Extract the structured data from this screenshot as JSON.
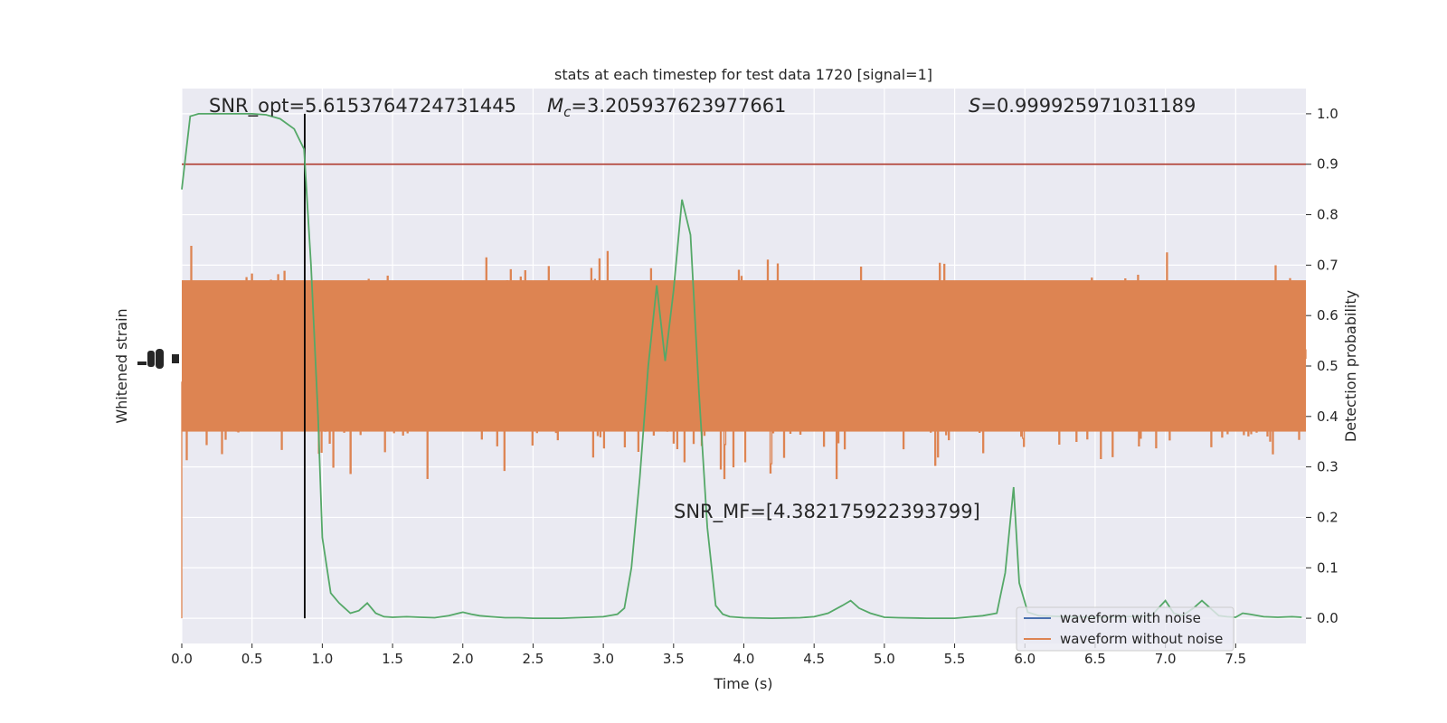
{
  "chart_data": {
    "type": "line",
    "title": "stats at each timestep for test data 1720 [signal=1]",
    "xlabel": "Time (s)",
    "ylabel_left": "Whitened strain",
    "ylabel_right": "Detection probability",
    "xlim": [
      0,
      8
    ],
    "ylim_right": [
      -0.05,
      1.05
    ],
    "x_ticks": [
      0.0,
      0.5,
      1.0,
      1.5,
      2.0,
      2.5,
      3.0,
      3.5,
      4.0,
      4.5,
      5.0,
      5.5,
      6.0,
      6.5,
      7.0,
      7.5
    ],
    "x_tick_labels": [
      "0.0",
      "0.5",
      "1.0",
      "1.5",
      "2.0",
      "2.5",
      "3.0",
      "3.5",
      "4.0",
      "4.5",
      "5.0",
      "5.5",
      "6.0",
      "6.5",
      "7.0",
      "7.5"
    ],
    "y_right_ticks": [
      0.0,
      0.1,
      0.2,
      0.3,
      0.4,
      0.5,
      0.6,
      0.7,
      0.8,
      0.9,
      1.0
    ],
    "y_right_tick_labels": [
      "0.0",
      "0.1",
      "0.2",
      "0.3",
      "0.4",
      "0.5",
      "0.6",
      "0.7",
      "0.8",
      "0.9",
      "1.0"
    ],
    "grid": true,
    "legend_position": "lower-right",
    "annotations": {
      "snr_opt": "SNR_opt=5.6153764724731445",
      "mc_symbol": "M",
      "mc_subscript": "c",
      "mc_value": "=3.205937623977661",
      "s_symbol": "S",
      "s_value": "=0.999925971031189",
      "snr_mf": "SNR_MF=[4.382175922393799]"
    },
    "threshold": 0.9,
    "marker_time": 0.875,
    "series": [
      {
        "name": "waveform with noise",
        "color": "#4c72b0"
      },
      {
        "name": "waveform without noise",
        "color": "#dd8452"
      },
      {
        "color": "#55a868",
        "x": [
          0.0,
          0.06,
          0.12,
          0.2,
          0.3,
          0.4,
          0.5,
          0.6,
          0.7,
          0.8,
          0.87,
          0.92,
          0.97,
          1.0,
          1.06,
          1.12,
          1.2,
          1.26,
          1.32,
          1.38,
          1.44,
          1.5,
          1.6,
          1.7,
          1.8,
          1.9,
          2.0,
          2.06,
          2.12,
          2.2,
          2.3,
          2.4,
          2.5,
          2.6,
          2.7,
          2.8,
          2.9,
          3.0,
          3.1,
          3.15,
          3.2,
          3.26,
          3.32,
          3.38,
          3.44,
          3.5,
          3.56,
          3.62,
          3.68,
          3.74,
          3.8,
          3.85,
          3.9,
          4.0,
          4.2,
          4.4,
          4.5,
          4.6,
          4.7,
          4.76,
          4.82,
          4.9,
          5.0,
          5.1,
          5.3,
          5.5,
          5.7,
          5.8,
          5.86,
          5.92,
          5.96,
          6.02,
          6.1,
          6.3,
          6.5,
          6.7,
          6.9,
          7.0,
          7.06,
          7.12,
          7.2,
          7.26,
          7.32,
          7.38,
          7.44,
          7.5,
          7.55,
          7.6,
          7.7,
          7.8,
          7.9,
          7.97
        ],
        "values": [
          0.85,
          0.995,
          1.0,
          1.0,
          1.0,
          1.0,
          1.0,
          0.998,
          0.99,
          0.97,
          0.93,
          0.7,
          0.4,
          0.16,
          0.05,
          0.03,
          0.01,
          0.015,
          0.03,
          0.01,
          0.003,
          0.002,
          0.003,
          0.002,
          0.001,
          0.005,
          0.012,
          0.008,
          0.005,
          0.003,
          0.001,
          0.001,
          0.0,
          0.0,
          0.0,
          0.001,
          0.002,
          0.003,
          0.008,
          0.02,
          0.1,
          0.28,
          0.5,
          0.66,
          0.51,
          0.65,
          0.83,
          0.76,
          0.45,
          0.18,
          0.025,
          0.008,
          0.003,
          0.001,
          0.0,
          0.001,
          0.003,
          0.01,
          0.025,
          0.035,
          0.02,
          0.01,
          0.002,
          0.001,
          0.0,
          0.0,
          0.005,
          0.01,
          0.09,
          0.26,
          0.07,
          0.012,
          0.005,
          0.003,
          0.002,
          0.003,
          0.005,
          0.035,
          0.01,
          0.005,
          0.02,
          0.035,
          0.02,
          0.005,
          0.003,
          0.002,
          0.01,
          0.008,
          0.003,
          0.002,
          0.003,
          0.002
        ]
      }
    ]
  }
}
